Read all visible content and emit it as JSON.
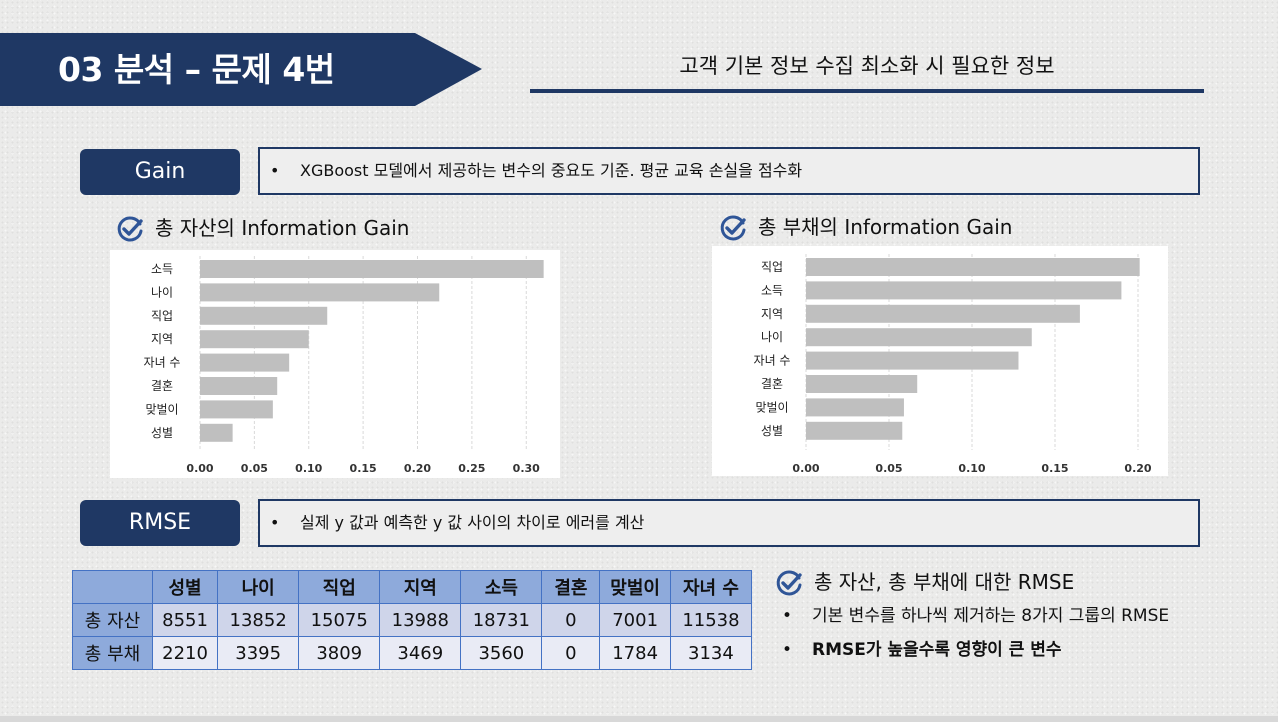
{
  "header": {
    "banner_title": "03  분석 – 문제 4번",
    "subtitle": "고객 기본 정보 수집 최소화 시 필요한 정보"
  },
  "gain": {
    "label": "Gain",
    "bullet": "•",
    "description": "XGBoost 모델에서 제공하는 변수의 중요도 기준. 평균 교육 손실을 점수화"
  },
  "rmse_section": {
    "label": "RMSE",
    "bullet": "•",
    "description": "실제 y 값과 예측한 y 값 사이의 차이로 에러를 계산"
  },
  "chart_headings": {
    "assets": "총 자산의 Information Gain",
    "debt": "총 부채의 Information Gain"
  },
  "icons": {
    "check": "check-circle-icon"
  },
  "colors": {
    "navy": "#1f3864",
    "bar": "#bfbfbf",
    "table_header": "#8eaadb",
    "table_border": "#4472c4"
  },
  "chart_data": [
    {
      "type": "bar",
      "orientation": "horizontal",
      "categories": [
        "소득",
        "나이",
        "직업",
        "지역",
        "자녀 수",
        "결혼",
        "맞벌이",
        "성별"
      ],
      "values": [
        0.316,
        0.22,
        0.117,
        0.1,
        0.082,
        0.071,
        0.067,
        0.03
      ],
      "xlim": [
        0,
        0.32
      ],
      "xticks": [
        "0.00",
        "0.05",
        "0.10",
        "0.15",
        "0.20",
        "0.25",
        "0.30"
      ],
      "grid": true
    },
    {
      "type": "bar",
      "orientation": "horizontal",
      "categories": [
        "직업",
        "소득",
        "지역",
        "나이",
        "자녀 수",
        "결혼",
        "맞벌이",
        "성별"
      ],
      "values": [
        0.201,
        0.19,
        0.165,
        0.136,
        0.128,
        0.067,
        0.059,
        0.058
      ],
      "xlim": [
        0,
        0.2
      ],
      "xticks": [
        "0.00",
        "0.05",
        "0.10",
        "0.15",
        "0.20"
      ],
      "grid": true
    }
  ],
  "table": {
    "corner": "",
    "columns": [
      "성별",
      "나이",
      "직업",
      "지역",
      "소득",
      "결혼",
      "맞벌이",
      "자녀 수"
    ],
    "rows": [
      {
        "label": "총 자산",
        "values": [
          "8551",
          "13852",
          "15075",
          "13988",
          "18731",
          "0",
          "7001",
          "11538"
        ]
      },
      {
        "label": "총 부채",
        "values": [
          "2210",
          "3395",
          "3809",
          "3469",
          "3560",
          "0",
          "1784",
          "3134"
        ]
      }
    ]
  },
  "rmse_notes": {
    "heading": "총 자산, 총 부채에 대한 RMSE",
    "bullet": "•",
    "items": [
      "기본 변수를 하나씩 제거하는 8가지 그룹의 RMSE",
      "RMSE가 높을수록 영향이 큰 변수"
    ]
  }
}
